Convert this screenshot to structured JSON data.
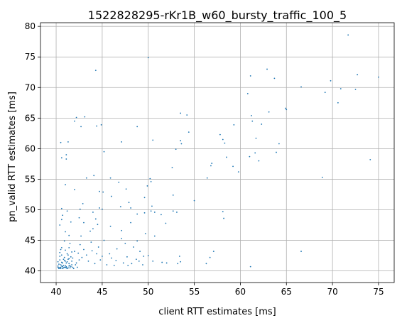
{
  "chart_data": {
    "type": "scatter",
    "title": "1522828295-rKr1B_w60_bursty_traffic_100_5",
    "xlabel": "client RTT estimates [ms]",
    "ylabel": "pn_valid RTT estimates [ms]",
    "xlim": [
      38.3,
      76.7
    ],
    "ylim": [
      38.1,
      80.6
    ],
    "xticks": [
      40,
      45,
      50,
      55,
      60,
      65,
      70,
      75
    ],
    "yticks": [
      40,
      45,
      50,
      55,
      60,
      65,
      70,
      75,
      80
    ],
    "grid": true,
    "point_color": "#1f77b4",
    "series": [
      {
        "points": [
          [
            71.7,
            78.6
          ],
          [
            50.0,
            74.9
          ],
          [
            44.3,
            72.8
          ],
          [
            62.9,
            73.0
          ],
          [
            61.1,
            71.9
          ],
          [
            63.7,
            71.5
          ],
          [
            72.7,
            72.1
          ],
          [
            75.0,
            71.7
          ],
          [
            69.8,
            71.1
          ],
          [
            70.9,
            69.8
          ],
          [
            72.5,
            69.7
          ],
          [
            69.2,
            69.2
          ],
          [
            60.8,
            69.0
          ],
          [
            70.6,
            67.5
          ],
          [
            66.6,
            70.1
          ],
          [
            65.0,
            66.4
          ],
          [
            64.9,
            66.6
          ],
          [
            63.1,
            66.0
          ],
          [
            61.2,
            65.4
          ],
          [
            53.5,
            65.8
          ],
          [
            54.2,
            65.5
          ],
          [
            61.3,
            64.5
          ],
          [
            62.3,
            64.0
          ],
          [
            59.3,
            63.9
          ],
          [
            42.0,
            64.5
          ],
          [
            42.2,
            65.1
          ],
          [
            43.1,
            65.2
          ],
          [
            42.7,
            63.6
          ],
          [
            44.4,
            63.7
          ],
          [
            44.9,
            63.9
          ],
          [
            48.8,
            63.6
          ],
          [
            57.8,
            62.3
          ],
          [
            54.4,
            62.7
          ],
          [
            58.1,
            61.5
          ],
          [
            61.7,
            61.7
          ],
          [
            64.2,
            60.8
          ],
          [
            58.3,
            60.9
          ],
          [
            53.5,
            61.3
          ],
          [
            53.6,
            60.8
          ],
          [
            50.5,
            61.4
          ],
          [
            47.1,
            61.1
          ],
          [
            41.3,
            61.1
          ],
          [
            40.5,
            61.0
          ],
          [
            45.2,
            59.5
          ],
          [
            53.0,
            59.9
          ],
          [
            58.5,
            58.6
          ],
          [
            61.0,
            58.7
          ],
          [
            61.6,
            59.3
          ],
          [
            62.0,
            58.0
          ],
          [
            63.9,
            59.4
          ],
          [
            74.1,
            58.2
          ],
          [
            41.1,
            59.0
          ],
          [
            40.6,
            58.5
          ],
          [
            41.1,
            58.3
          ],
          [
            56.9,
            57.6
          ],
          [
            56.8,
            57.2
          ],
          [
            59.2,
            57.1
          ],
          [
            59.8,
            56.2
          ],
          [
            52.6,
            56.9
          ],
          [
            44.1,
            55.6
          ],
          [
            45.9,
            55.2
          ],
          [
            56.4,
            55.2
          ],
          [
            68.9,
            55.3
          ],
          [
            43.3,
            55.2
          ],
          [
            50.2,
            55.1
          ],
          [
            50.3,
            54.6
          ],
          [
            46.8,
            54.5
          ],
          [
            41.0,
            54.1
          ],
          [
            49.9,
            53.9
          ],
          [
            47.6,
            53.4
          ],
          [
            42.0,
            53.3
          ],
          [
            44.7,
            53.0
          ],
          [
            45.1,
            52.9
          ],
          [
            46.0,
            52.2
          ],
          [
            49.6,
            52.0
          ],
          [
            52.7,
            52.4
          ],
          [
            55.0,
            51.5
          ],
          [
            47.9,
            51.2
          ],
          [
            48.1,
            50.3
          ],
          [
            47.0,
            50.5
          ],
          [
            44.7,
            50.3
          ],
          [
            45.0,
            50.1
          ],
          [
            42.6,
            50.1
          ],
          [
            42.9,
            51.0
          ],
          [
            40.6,
            50.2
          ],
          [
            41.2,
            49.8
          ],
          [
            44.0,
            49.6
          ],
          [
            49.6,
            49.5
          ],
          [
            50.3,
            49.8
          ],
          [
            50.4,
            50.6
          ],
          [
            50.7,
            49.6
          ],
          [
            51.4,
            49.2
          ],
          [
            52.7,
            49.8
          ],
          [
            53.1,
            49.6
          ],
          [
            48.8,
            49.3
          ],
          [
            58.1,
            49.7
          ],
          [
            58.2,
            48.6
          ],
          [
            51.9,
            47.8
          ],
          [
            40.7,
            49.1
          ],
          [
            40.6,
            48.4
          ],
          [
            41.6,
            48.0
          ],
          [
            42.5,
            48.7
          ],
          [
            43.0,
            47.9
          ],
          [
            44.3,
            48.5
          ],
          [
            44.5,
            47.6
          ],
          [
            44.0,
            46.9
          ],
          [
            43.7,
            46.5
          ],
          [
            45.9,
            47.3
          ],
          [
            48.1,
            47.9
          ],
          [
            47.1,
            46.6
          ],
          [
            40.4,
            47.5
          ],
          [
            41.0,
            46.4
          ],
          [
            41.4,
            45.8
          ],
          [
            42.7,
            45.7
          ],
          [
            43.8,
            44.7
          ],
          [
            45.2,
            45.0
          ],
          [
            47.1,
            45.3
          ],
          [
            48.8,
            44.9
          ],
          [
            49.7,
            46.1
          ],
          [
            50.7,
            45.7
          ],
          [
            40.9,
            44.9
          ],
          [
            41.5,
            44.5
          ],
          [
            42.6,
            44.3
          ],
          [
            44.6,
            43.9
          ],
          [
            46.6,
            43.6
          ],
          [
            47.5,
            44.5
          ],
          [
            48.4,
            43.9
          ],
          [
            49.1,
            43.2
          ],
          [
            50.0,
            42.5
          ],
          [
            53.4,
            42.4
          ],
          [
            56.7,
            42.2
          ],
          [
            57.1,
            43.2
          ],
          [
            66.6,
            43.2
          ],
          [
            40.5,
            43.5
          ],
          [
            41.4,
            43.8
          ],
          [
            42.0,
            43.2
          ],
          [
            43.0,
            43.5
          ],
          [
            44.4,
            42.8
          ],
          [
            45.0,
            42.4
          ],
          [
            46.0,
            42.1
          ],
          [
            47.7,
            42.3
          ],
          [
            48.7,
            41.9
          ],
          [
            50.5,
            41.6
          ],
          [
            51.5,
            41.4
          ],
          [
            52.0,
            41.3
          ],
          [
            53.2,
            41.2
          ],
          [
            53.5,
            41.5
          ],
          [
            56.3,
            41.2
          ],
          [
            61.1,
            40.7
          ],
          [
            42.5,
            41.8
          ],
          [
            43.5,
            41.6
          ],
          [
            44.2,
            41.2
          ],
          [
            45.5,
            41.0
          ],
          [
            46.3,
            40.9
          ],
          [
            47.8,
            40.9
          ],
          [
            49.4,
            41.0
          ],
          [
            40.2,
            41.5
          ],
          [
            40.4,
            42.4
          ],
          [
            40.6,
            40.8
          ],
          [
            40.8,
            41.9
          ],
          [
            41.0,
            40.6
          ],
          [
            41.2,
            42.8
          ],
          [
            41.4,
            41.2
          ],
          [
            41.6,
            40.7
          ],
          [
            41.8,
            42.1
          ],
          [
            42.1,
            41.0
          ],
          [
            42.3,
            40.6
          ],
          [
            40.3,
            40.5
          ],
          [
            40.5,
            41.0
          ],
          [
            40.7,
            40.4
          ],
          [
            40.9,
            40.6
          ],
          [
            41.1,
            41.3
          ],
          [
            41.3,
            40.5
          ],
          [
            41.5,
            40.9
          ],
          [
            41.7,
            41.6
          ],
          [
            41.9,
            40.4
          ],
          [
            42.2,
            41.3
          ],
          [
            40.2,
            40.8
          ],
          [
            40.4,
            41.8
          ],
          [
            40.6,
            42.6
          ],
          [
            40.8,
            40.9
          ],
          [
            41.0,
            41.6
          ],
          [
            41.2,
            40.4
          ],
          [
            41.4,
            40.8
          ],
          [
            41.6,
            42.3
          ],
          [
            41.8,
            40.6
          ],
          [
            40.3,
            40.4
          ],
          [
            40.5,
            40.6
          ],
          [
            40.7,
            41.3
          ],
          [
            40.9,
            42.2
          ],
          [
            41.1,
            40.7
          ],
          [
            41.3,
            41.9
          ],
          [
            41.5,
            40.5
          ],
          [
            41.7,
            41.0
          ],
          [
            40.2,
            40.6
          ],
          [
            40.4,
            40.5
          ],
          [
            40.6,
            41.4
          ],
          [
            40.8,
            40.5
          ],
          [
            41.0,
            40.9
          ],
          [
            41.2,
            41.5
          ],
          [
            41.4,
            42.0
          ],
          [
            40.3,
            41.1
          ],
          [
            40.5,
            40.4
          ],
          [
            40.7,
            40.7
          ],
          [
            40.9,
            41.7
          ],
          [
            41.1,
            40.5
          ],
          [
            40.4,
            43.0
          ],
          [
            40.6,
            43.8
          ],
          [
            41.0,
            43.4
          ],
          [
            41.3,
            42.6
          ],
          [
            41.7,
            43.1
          ],
          [
            42.4,
            42.9
          ],
          [
            42.8,
            42.2
          ],
          [
            43.3,
            42.6
          ],
          [
            43.9,
            43.3
          ],
          [
            44.8,
            41.8
          ],
          [
            45.8,
            42.8
          ],
          [
            46.5,
            41.7
          ],
          [
            47.3,
            41.3
          ],
          [
            48.2,
            41.2
          ],
          [
            49.0,
            41.6
          ],
          [
            49.5,
            42.4
          ]
        ]
      }
    ]
  }
}
